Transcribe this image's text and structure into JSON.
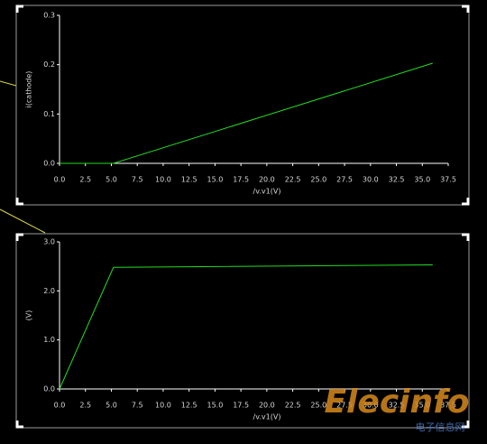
{
  "chart_data": [
    {
      "type": "line",
      "ylabel": "i(cathode)",
      "xlabel": "/v.v1(V)",
      "xlim": [
        0,
        37.5
      ],
      "ylim": [
        0,
        0.3
      ],
      "xticks": [
        {
          "value": 0,
          "label": "0.0"
        },
        2.5,
        {
          "value": 5,
          "label": "5.0"
        },
        7.5,
        {
          "value": 10,
          "label": "10.0"
        },
        12.5,
        {
          "value": 15,
          "label": "15.0"
        },
        17.5,
        {
          "value": 20,
          "label": "20.0"
        },
        22.5,
        {
          "value": 25,
          "label": "25.0"
        },
        27.5,
        {
          "value": 30,
          "label": "30.0"
        },
        32.5,
        {
          "value": 35,
          "label": "35.0"
        },
        37.5
      ],
      "yticks": [
        {
          "value": 0,
          "label": "0.0"
        },
        0.1,
        0.2,
        0.3
      ],
      "series": [
        {
          "color": "#22dd22",
          "x": [
            0,
            5.2,
            36
          ],
          "values": [
            0,
            0,
            0.203
          ]
        }
      ]
    },
    {
      "type": "line",
      "ylabel": "(V)",
      "xlabel": "/v.v1(V)",
      "xlim": [
        0,
        37.5
      ],
      "ylim": [
        0,
        3
      ],
      "xticks": [
        {
          "value": 0,
          "label": "0.0"
        },
        2.5,
        {
          "value": 5,
          "label": "5.0"
        },
        7.5,
        {
          "value": 10,
          "label": "10.0"
        },
        12.5,
        {
          "value": 15,
          "label": "15.0"
        },
        17.5,
        {
          "value": 20,
          "label": "20.0"
        },
        22.5,
        {
          "value": 25,
          "label": "25.0"
        },
        27.5,
        {
          "value": 30,
          "label": "30.0"
        },
        32.5,
        {
          "value": 35,
          "label": "35.0"
        },
        37.5
      ],
      "yticks": [
        {
          "value": 0,
          "label": "0.0"
        },
        {
          "value": 1,
          "label": "1.0"
        },
        {
          "value": 2,
          "label": "2.0"
        },
        {
          "value": 3,
          "label": "3.0"
        }
      ],
      "series": [
        {
          "color": "#22dd22",
          "x": [
            0,
            5.2,
            36
          ],
          "values": [
            0,
            2.48,
            2.53
          ]
        }
      ]
    }
  ],
  "watermark": {
    "text": "Elecinfo",
    "subtext": "电子信息网"
  }
}
